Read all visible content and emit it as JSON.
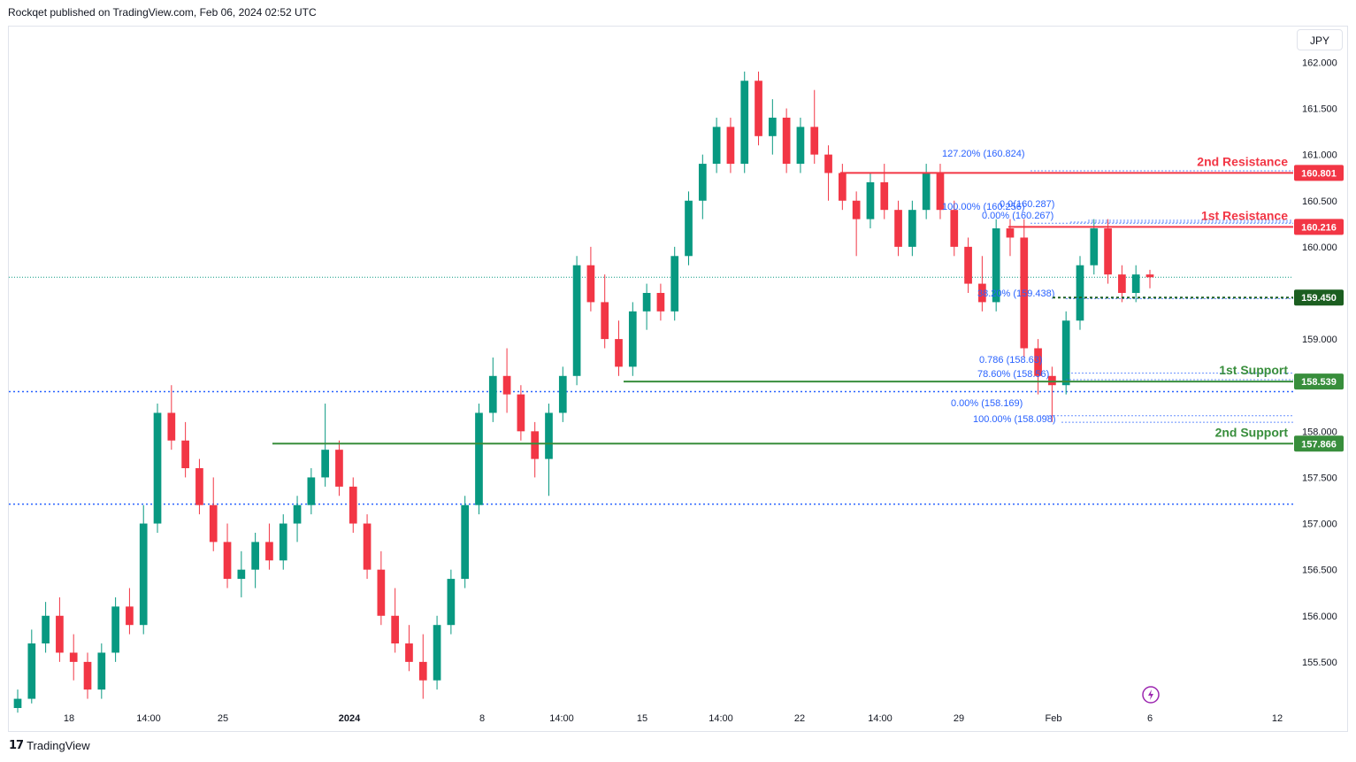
{
  "header": {
    "publisher_line": "Rockqet published on TradingView.com, Feb 06, 2024 02:52 UTC"
  },
  "currency_button": "JPY",
  "footer": {
    "brand": "TradingView"
  },
  "colors": {
    "up": "#089981",
    "down": "#f23645",
    "support": "#388e3c",
    "resistance": "#f23645",
    "fib": "#2962ff",
    "current": "#131722"
  },
  "chart_data": {
    "type": "candlestick",
    "ylim": [
      155.0,
      162.1
    ],
    "y_ticks": [
      "155.500",
      "156.000",
      "156.500",
      "157.000",
      "157.500",
      "158.000",
      "158.500",
      "159.000",
      "159.500",
      "160.000",
      "160.500",
      "161.000",
      "161.500"
    ],
    "y_top_partial_tick": "162.000",
    "x_ticks": [
      "18",
      "14:00",
      "25",
      "2024",
      "8",
      "14:00",
      "15",
      "14:00",
      "22",
      "14:00",
      "29",
      "Feb",
      "6",
      "12"
    ],
    "bold_x_ticks": [
      "2024"
    ],
    "levels": [
      {
        "name": "2nd Resistance",
        "value": 160.801,
        "label": "160.801",
        "kind": "resistance"
      },
      {
        "name": "1st Resistance",
        "value": 160.216,
        "label": "160.216",
        "kind": "resistance"
      },
      {
        "name": "",
        "value": 159.45,
        "label": "159.450",
        "kind": "current"
      },
      {
        "name": "1st Support",
        "value": 158.539,
        "label": "158.539",
        "kind": "support"
      },
      {
        "name": "2nd Support",
        "value": 157.866,
        "label": "157.866",
        "kind": "support"
      }
    ],
    "fib_labels": [
      "127.20% (160.824)",
      "100.00% (160.256)",
      "0.0(160.287)",
      "0.00% (160.267)",
      "38.20% (159.438)",
      "0.786 (158.63)",
      "78.60% (158.56)",
      "0.00% (158.169)",
      "100.00% (158.098)"
    ],
    "horizontal_dotted": [
      158.43,
      157.21
    ],
    "last_price_line": 159.67,
    "candles_ohlc": [
      [
        155.0,
        155.2,
        154.95,
        155.1
      ],
      [
        155.1,
        155.85,
        155.05,
        155.7
      ],
      [
        155.7,
        156.15,
        155.6,
        156.0
      ],
      [
        156.0,
        156.2,
        155.5,
        155.6
      ],
      [
        155.6,
        155.8,
        155.3,
        155.5
      ],
      [
        155.5,
        155.6,
        155.1,
        155.2
      ],
      [
        155.2,
        155.7,
        155.1,
        155.6
      ],
      [
        155.6,
        156.2,
        155.5,
        156.1
      ],
      [
        156.1,
        156.3,
        155.8,
        155.9
      ],
      [
        155.9,
        157.2,
        155.8,
        157.0
      ],
      [
        157.0,
        158.3,
        156.9,
        158.2
      ],
      [
        158.2,
        158.5,
        157.8,
        157.9
      ],
      [
        157.9,
        158.1,
        157.5,
        157.6
      ],
      [
        157.6,
        157.7,
        157.1,
        157.2
      ],
      [
        157.2,
        157.5,
        156.7,
        156.8
      ],
      [
        156.8,
        157.0,
        156.3,
        156.4
      ],
      [
        156.4,
        156.7,
        156.2,
        156.5
      ],
      [
        156.5,
        156.9,
        156.3,
        156.8
      ],
      [
        156.8,
        157.0,
        156.5,
        156.6
      ],
      [
        156.6,
        157.1,
        156.5,
        157.0
      ],
      [
        157.0,
        157.3,
        156.8,
        157.2
      ],
      [
        157.2,
        157.6,
        157.1,
        157.5
      ],
      [
        157.5,
        158.3,
        157.4,
        157.8
      ],
      [
        157.8,
        157.9,
        157.3,
        157.4
      ],
      [
        157.4,
        157.5,
        156.9,
        157.0
      ],
      [
        157.0,
        157.1,
        156.4,
        156.5
      ],
      [
        156.5,
        156.7,
        155.9,
        156.0
      ],
      [
        156.0,
        156.3,
        155.6,
        155.7
      ],
      [
        155.7,
        155.9,
        155.4,
        155.5
      ],
      [
        155.5,
        155.8,
        155.1,
        155.3
      ],
      [
        155.3,
        156.0,
        155.2,
        155.9
      ],
      [
        155.9,
        156.5,
        155.8,
        156.4
      ],
      [
        156.4,
        157.3,
        156.3,
        157.2
      ],
      [
        157.2,
        158.3,
        157.1,
        158.2
      ],
      [
        158.2,
        158.8,
        158.1,
        158.6
      ],
      [
        158.6,
        158.9,
        158.2,
        158.4
      ],
      [
        158.4,
        158.5,
        157.9,
        158.0
      ],
      [
        158.0,
        158.1,
        157.5,
        157.7
      ],
      [
        157.7,
        158.3,
        157.3,
        158.2
      ],
      [
        158.2,
        158.7,
        158.1,
        158.6
      ],
      [
        158.6,
        159.9,
        158.5,
        159.8
      ],
      [
        159.8,
        160.0,
        159.3,
        159.4
      ],
      [
        159.4,
        159.7,
        158.9,
        159.0
      ],
      [
        159.0,
        159.2,
        158.6,
        158.7
      ],
      [
        158.7,
        159.4,
        158.6,
        159.3
      ],
      [
        159.3,
        159.6,
        159.1,
        159.5
      ],
      [
        159.5,
        159.6,
        159.2,
        159.3
      ],
      [
        159.3,
        160.0,
        159.2,
        159.9
      ],
      [
        159.9,
        160.6,
        159.8,
        160.5
      ],
      [
        160.5,
        161.0,
        160.3,
        160.9
      ],
      [
        160.9,
        161.4,
        160.8,
        161.3
      ],
      [
        161.3,
        161.4,
        160.8,
        160.9
      ],
      [
        160.9,
        161.9,
        160.8,
        161.8
      ],
      [
        161.8,
        161.9,
        161.1,
        161.2
      ],
      [
        161.2,
        161.6,
        161.0,
        161.4
      ],
      [
        161.4,
        161.5,
        160.8,
        160.9
      ],
      [
        160.9,
        161.4,
        160.8,
        161.3
      ],
      [
        161.3,
        161.7,
        160.9,
        161.0
      ],
      [
        161.0,
        161.1,
        160.5,
        160.8
      ],
      [
        160.8,
        160.9,
        160.4,
        160.5
      ],
      [
        160.5,
        160.6,
        159.9,
        160.3
      ],
      [
        160.3,
        160.8,
        160.2,
        160.7
      ],
      [
        160.7,
        160.9,
        160.3,
        160.4
      ],
      [
        160.4,
        160.5,
        159.9,
        160.0
      ],
      [
        160.0,
        160.5,
        159.9,
        160.4
      ],
      [
        160.4,
        160.9,
        160.3,
        160.8
      ],
      [
        160.8,
        160.9,
        160.3,
        160.4
      ],
      [
        160.4,
        160.5,
        159.9,
        160.0
      ],
      [
        160.0,
        160.1,
        159.5,
        159.6
      ],
      [
        159.6,
        159.9,
        159.3,
        159.4
      ],
      [
        159.4,
        160.3,
        159.3,
        160.2
      ],
      [
        160.2,
        160.3,
        159.9,
        160.1
      ],
      [
        160.1,
        160.3,
        158.8,
        158.9
      ],
      [
        158.9,
        159.0,
        158.4,
        158.6
      ],
      [
        158.6,
        158.7,
        158.1,
        158.5
      ],
      [
        158.5,
        159.3,
        158.4,
        159.2
      ],
      [
        159.2,
        159.9,
        159.1,
        159.8
      ],
      [
        159.8,
        160.3,
        159.7,
        160.2
      ],
      [
        160.2,
        160.3,
        159.6,
        159.7
      ],
      [
        159.7,
        159.8,
        159.4,
        159.5
      ],
      [
        159.5,
        159.8,
        159.4,
        159.7
      ],
      [
        159.7,
        159.75,
        159.55,
        159.67
      ]
    ]
  }
}
